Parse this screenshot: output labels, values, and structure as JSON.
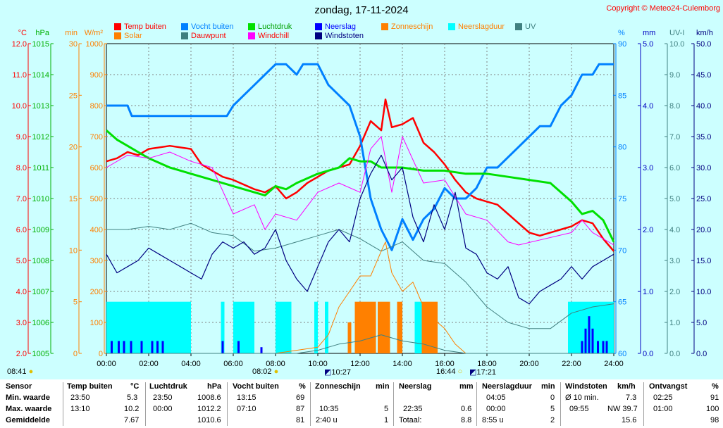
{
  "header": {
    "title": "zondag, 17-11-2024",
    "copyright": "Copyright © Meteo24-Culemborg"
  },
  "legend": [
    {
      "label": "Temp buiten",
      "color": "#ff0000"
    },
    {
      "label": "Vocht buiten",
      "color": "#0080ff"
    },
    {
      "label": "Luchtdruk",
      "color": "#00e000"
    },
    {
      "label": "Neerslag",
      "color": "#0000ff"
    },
    {
      "label": "Zonneschijn",
      "color": "#ff8000"
    },
    {
      "label": "Neerslagduur",
      "color": "#00ffff"
    },
    {
      "label": "UV",
      "color": "#408080"
    },
    {
      "label": "Solar",
      "color": "#ff8000"
    },
    {
      "label": "Dauwpunt",
      "color": "#408080"
    },
    {
      "label": "Windchill",
      "color": "#ff00ff"
    },
    {
      "label": "Windstoten",
      "color": "#000080"
    }
  ],
  "sun": {
    "sunrise": "08:41",
    "noon": "08:02",
    "sunset": "16:44",
    "moonrise": "10:27",
    "moonset": "17:21"
  },
  "chart_data": {
    "type": "line",
    "x_range": [
      "00:00",
      "24:00"
    ],
    "x_ticks": [
      "00:00",
      "02:00",
      "04:00",
      "06:00",
      "08:00",
      "10:00",
      "12:00",
      "14:00",
      "16:00",
      "18:00",
      "20:00",
      "22:00",
      "24:00"
    ],
    "axes": {
      "temp": {
        "unit": "°C",
        "min": 2.0,
        "max": 12.0,
        "ticks": [
          "12.0",
          "11.0",
          "10.0",
          "9.0",
          "8.0",
          "7.0",
          "6.0",
          "5.0",
          "4.0",
          "3.0",
          "2.0"
        ],
        "color": "#ff0000"
      },
      "pressure": {
        "unit": "hPa",
        "min": 1005,
        "max": 1015,
        "ticks": [
          "1015",
          "1014",
          "1013",
          "1012",
          "1011",
          "1010",
          "1009",
          "1008",
          "1007",
          "1006",
          "1005"
        ],
        "color": "#00b000"
      },
      "minutes": {
        "unit": "min",
        "min": 0,
        "max": 30,
        "ticks": [
          "30",
          "25",
          "20",
          "15",
          "10",
          "5",
          "0"
        ],
        "color": "#ff8000"
      },
      "solar": {
        "unit": "W/m²",
        "min": 0,
        "max": 1000,
        "ticks": [
          "1000",
          "900",
          "800",
          "700",
          "600",
          "500",
          "400",
          "300",
          "200",
          "100",
          "0"
        ],
        "color": "#ff8000"
      },
      "humidity": {
        "unit": "%",
        "min": 60,
        "max": 90,
        "ticks": [
          "90",
          "85",
          "80",
          "75",
          "70",
          "65",
          "60"
        ],
        "color": "#0080ff"
      },
      "rain": {
        "unit": "mm",
        "min": 0.0,
        "max": 5.0,
        "ticks": [
          "5.0",
          "4.0",
          "3.0",
          "2.0",
          "1.0",
          "0.0"
        ],
        "color": "#0000c0"
      },
      "uv": {
        "unit": "UV-I",
        "min": 0.0,
        "max": 10.0,
        "ticks": [
          "10.0",
          "9.0",
          "8.0",
          "7.0",
          "6.0",
          "5.0",
          "4.0",
          "3.0",
          "2.0",
          "1.0",
          "0.0"
        ],
        "color": "#408080"
      },
      "wind": {
        "unit": "km/h",
        "min": 0.0,
        "max": 50.0,
        "ticks": [
          "50.0",
          "45.0",
          "40.0",
          "35.0",
          "30.0",
          "25.0",
          "20.0",
          "15.0",
          "10.0",
          "5.0",
          "0.0"
        ],
        "color": "#000080"
      }
    },
    "series": [
      {
        "name": "Temp buiten",
        "axis": "temp",
        "color": "#ff0000",
        "x": [
          0,
          0.5,
          1,
          1.5,
          2,
          3,
          4,
          4.5,
          5,
          5.5,
          6,
          7,
          7.5,
          8,
          8.5,
          9,
          9.5,
          10,
          10.5,
          11,
          11.5,
          12,
          12.5,
          13,
          13.2,
          13.5,
          14,
          14.5,
          15,
          15.5,
          16,
          16.5,
          17,
          17.5,
          18,
          18.5,
          19,
          19.5,
          20,
          20.5,
          21,
          21.5,
          22,
          22.5,
          23,
          23.5,
          24
        ],
        "y": [
          8.2,
          8.3,
          8.5,
          8.4,
          8.6,
          8.7,
          8.6,
          8.1,
          7.9,
          7.7,
          7.6,
          7.3,
          7.2,
          7.4,
          7.0,
          7.2,
          7.5,
          7.7,
          7.9,
          8.0,
          8.1,
          8.7,
          9.5,
          9.2,
          10.2,
          9.3,
          9.4,
          9.6,
          8.8,
          8.5,
          8.1,
          7.6,
          7.2,
          7.0,
          6.9,
          6.8,
          6.5,
          6.2,
          5.9,
          5.8,
          5.9,
          6.0,
          6.1,
          6.3,
          6.2,
          5.7,
          5.3
        ]
      },
      {
        "name": "Vocht buiten",
        "axis": "humidity",
        "color": "#0080ff",
        "x": [
          0,
          1,
          1.2,
          2,
          3,
          4,
          5,
          5.7,
          6,
          6.5,
          7,
          7.5,
          8,
          8.5,
          9,
          9.3,
          10,
          10.5,
          11,
          11.5,
          12,
          12.5,
          13,
          13.5,
          14,
          14.5,
          15,
          15.5,
          16,
          16.5,
          17,
          17.5,
          18,
          18.5,
          19,
          19.5,
          20,
          20.5,
          21,
          21.5,
          22,
          22.5,
          23,
          23.3,
          24
        ],
        "y": [
          84,
          84,
          83,
          83,
          83,
          83,
          83,
          83,
          84,
          85,
          86,
          87,
          88,
          88,
          87,
          88,
          88,
          86,
          85,
          84,
          81,
          75,
          72,
          70,
          73,
          71,
          73,
          74,
          76,
          75,
          75,
          76,
          78,
          78,
          79,
          80,
          81,
          82,
          82,
          84,
          85,
          87,
          87,
          88,
          88
        ]
      },
      {
        "name": "Luchtdruk",
        "axis": "pressure",
        "color": "#00e000",
        "x": [
          0,
          0.5,
          1,
          2,
          3,
          4,
          5,
          6,
          7,
          7.5,
          8,
          8.5,
          9,
          10,
          11,
          11.5,
          12,
          12.5,
          13,
          14,
          15,
          16,
          17,
          18,
          19,
          20,
          21,
          22,
          22.5,
          23,
          23.5,
          24
        ],
        "y": [
          1012.2,
          1011.9,
          1011.7,
          1011.3,
          1011.0,
          1010.8,
          1010.6,
          1010.4,
          1010.2,
          1010.1,
          1010.4,
          1010.3,
          1010.5,
          1010.8,
          1011.0,
          1011.3,
          1011.2,
          1011.2,
          1011.0,
          1011.0,
          1010.9,
          1010.9,
          1010.8,
          1010.8,
          1010.7,
          1010.6,
          1010.5,
          1009.9,
          1009.5,
          1009.6,
          1009.3,
          1008.6
        ]
      },
      {
        "name": "Dauwpunt",
        "axis": "temp",
        "color": "#408080",
        "x": [
          0,
          1,
          2,
          3,
          4,
          5,
          6,
          7,
          8,
          9,
          10,
          11,
          12,
          13,
          14,
          15,
          16,
          17,
          18,
          19,
          20,
          21,
          22,
          23,
          24
        ],
        "y": [
          6.0,
          6.0,
          6.1,
          6.0,
          6.2,
          5.9,
          5.8,
          5.3,
          5.4,
          5.6,
          5.8,
          6.0,
          5.7,
          5.3,
          5.6,
          5.0,
          4.9,
          4.3,
          3.5,
          3.0,
          2.8,
          2.8,
          3.3,
          3.5,
          3.6
        ]
      },
      {
        "name": "Windchill",
        "axis": "temp",
        "color": "#ff00ff",
        "x": [
          0,
          1,
          2,
          3,
          4,
          5,
          6,
          7,
          7.5,
          8,
          9,
          10,
          11,
          12,
          12.5,
          13,
          13.5,
          14,
          15,
          16,
          17,
          18,
          19,
          19.5,
          22,
          22.5,
          23,
          23.5,
          24
        ],
        "y": [
          8.0,
          8.4,
          8.3,
          8.5,
          8.2,
          8.0,
          6.5,
          6.8,
          6.0,
          6.5,
          6.3,
          7.2,
          7.5,
          7.2,
          8.6,
          9.0,
          7.2,
          9.0,
          7.5,
          7.6,
          6.5,
          6.3,
          5.6,
          5.5,
          5.9,
          6.3,
          5.9,
          5.7,
          5.5
        ]
      },
      {
        "name": "Windstoten",
        "axis": "wind",
        "color": "#000080",
        "x": [
          0,
          0.5,
          1,
          1.5,
          2,
          2.5,
          3,
          3.5,
          4,
          4.5,
          5,
          5.5,
          6,
          6.5,
          7,
          7.5,
          8,
          8.5,
          9,
          9.5,
          10,
          10.5,
          11,
          11.5,
          12,
          12.5,
          13,
          13.5,
          14,
          14.5,
          15,
          15.5,
          16,
          16.5,
          17,
          17.5,
          18,
          18.5,
          19,
          19.5,
          20,
          20.5,
          21,
          21.5,
          22,
          22.5,
          23,
          23.5,
          24
        ],
        "y": [
          16,
          13,
          14,
          15,
          17,
          16,
          15,
          14,
          13,
          12,
          16,
          18,
          17,
          18,
          16,
          17,
          20,
          15,
          12,
          10,
          14,
          18,
          20,
          18,
          25,
          29,
          32,
          28,
          30,
          22,
          18,
          24,
          20,
          26,
          17,
          16,
          13,
          12,
          14,
          9,
          8,
          10,
          11,
          12,
          14,
          12,
          14,
          15,
          16
        ]
      },
      {
        "name": "Solar",
        "axis": "solar",
        "color": "#ff8000",
        "x": [
          0,
          8,
          9,
          10,
          10.5,
          11,
          11.5,
          12,
          12.5,
          13,
          13.2,
          13.5,
          14,
          14.5,
          15,
          15.5,
          16,
          16.5,
          17,
          24
        ],
        "y": [
          0,
          0,
          10,
          20,
          60,
          150,
          200,
          250,
          250,
          330,
          360,
          260,
          200,
          230,
          150,
          110,
          80,
          30,
          0,
          0
        ]
      },
      {
        "name": "UV",
        "axis": "uv",
        "color": "#408080",
        "x": [
          0,
          9,
          10,
          11,
          12,
          13,
          14,
          15,
          16,
          17,
          24
        ],
        "y": [
          0,
          0,
          0.1,
          0.3,
          0.4,
          0.6,
          0.4,
          0.3,
          0.1,
          0,
          0
        ]
      }
    ],
    "neerslagduur_blocks_min": [
      {
        "start": "00:00",
        "end": "04:00",
        "value": 5
      },
      {
        "start": "05:25",
        "end": "05:35",
        "value": 5
      },
      {
        "start": "06:00",
        "end": "07:00",
        "value": 5
      },
      {
        "start": "08:00",
        "end": "08:45",
        "value": 5
      },
      {
        "start": "09:50",
        "end": "10:00",
        "value": 5
      },
      {
        "start": "10:20",
        "end": "10:30",
        "value": 5
      },
      {
        "start": "14:35",
        "end": "14:55",
        "value": 5
      },
      {
        "start": "21:50",
        "end": "24:00",
        "value": 5
      }
    ],
    "zonneschijn_blocks_min": [
      {
        "start": "11:25",
        "end": "11:35",
        "value": 3
      },
      {
        "start": "11:45",
        "end": "12:45",
        "value": 5
      },
      {
        "start": "12:50",
        "end": "13:25",
        "value": 5
      },
      {
        "start": "13:45",
        "end": "14:00",
        "value": 5
      },
      {
        "start": "14:55",
        "end": "15:40",
        "value": 5
      }
    ],
    "neerslag_blocks_mm": [
      {
        "t": "00:15",
        "v": 0.2
      },
      {
        "t": "00:35",
        "v": 0.2
      },
      {
        "t": "00:50",
        "v": 0.2
      },
      {
        "t": "01:10",
        "v": 0.2
      },
      {
        "t": "01:40",
        "v": 0.2
      },
      {
        "t": "02:10",
        "v": 0.2
      },
      {
        "t": "02:25",
        "v": 0.2
      },
      {
        "t": "02:40",
        "v": 0.2
      },
      {
        "t": "05:30",
        "v": 0.2
      },
      {
        "t": "06:15",
        "v": 0.2
      },
      {
        "t": "07:20",
        "v": 0.1
      },
      {
        "t": "22:30",
        "v": 0.2
      },
      {
        "t": "22:40",
        "v": 0.4
      },
      {
        "t": "22:50",
        "v": 0.6
      },
      {
        "t": "23:00",
        "v": 0.4
      },
      {
        "t": "23:15",
        "v": 0.2
      },
      {
        "t": "23:30",
        "v": 0.2
      },
      {
        "t": "23:40",
        "v": 0.2
      }
    ]
  },
  "summary": {
    "headers": {
      "sensor": "Sensor",
      "temp": "Temp buiten",
      "temp_unit": "°C",
      "pressure": "Luchtdruk",
      "pressure_unit": "hPa",
      "humidity": "Vocht buiten",
      "humidity_unit": "%",
      "sun": "Zonneschijn",
      "sun_unit": "min",
      "rain": "Neerslag",
      "rain_unit": "mm",
      "rainduur": "Neerslagduur",
      "rainduur_unit": "min",
      "wind": "Windstoten",
      "wind_unit": "km/h",
      "dew": "Ontvangst",
      "dew_unit": "%"
    },
    "rows": [
      {
        "label": "Min. waarde",
        "temp_t": "23:50",
        "temp_v": "5.3",
        "pres_t": "23:50",
        "pres_v": "1008.6",
        "hum_t": "13:15",
        "hum_v": "69",
        "sun_t": "",
        "sun_v": "",
        "rain_t": "",
        "rain_v": "",
        "rd_t": "04:05",
        "rd_v": "0",
        "wind_t": "Ø 10 min.",
        "wind_v": "7.3",
        "rec_t": "02:25",
        "rec_v": "91"
      },
      {
        "label": "Max. waarde",
        "temp_t": "13:10",
        "temp_v": "10.2",
        "pres_t": "00:00",
        "pres_v": "1012.2",
        "hum_t": "07:10",
        "hum_v": "87",
        "sun_t": "10:35",
        "sun_v": "5",
        "rain_t": "22:35",
        "rain_v": "0.6",
        "rd_t": "00:00",
        "rd_v": "5",
        "wind_t": "09:55",
        "wind_v": "NW 39.7",
        "rec_t": "01:00",
        "rec_v": "100"
      },
      {
        "label": "Gemiddelde",
        "temp_t": "",
        "temp_v": "7.67",
        "pres_t": "",
        "pres_v": "1010.6",
        "hum_t": "",
        "hum_v": "81",
        "sun_t": "2:40 u",
        "sun_v": "1",
        "rain_t": "Totaal:",
        "rain_v": "8.8",
        "rd_t": "8:55 u",
        "rd_v": "2",
        "wind_t": "",
        "wind_v": "15.6",
        "rec_t": "",
        "rec_v": "98"
      }
    ]
  }
}
